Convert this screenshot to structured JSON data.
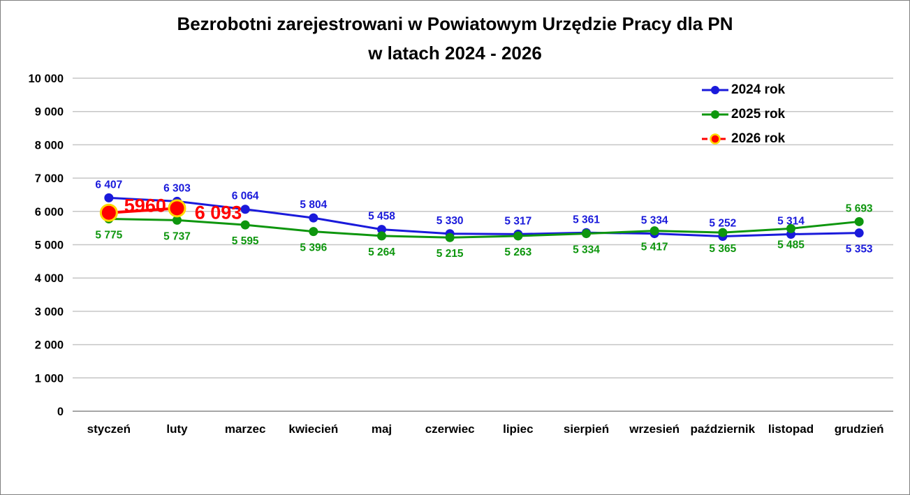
{
  "title": {
    "line1": "Bezrobotni zarejestrowani w Powiatowym Urzędzie Pracy dla PN",
    "line2": "w latach 2024 - 2026"
  },
  "colors": {
    "series_2024": "#1a1adb",
    "series_2025": "#0e960e",
    "series_2026": "#ff0000",
    "marker_ring_2026": "#ffd700",
    "gridline": "#c6c6c6",
    "axis_line": "#9a9a9a",
    "text": "#000000"
  },
  "chart_data": {
    "type": "line",
    "title": "Bezrobotni zarejestrowani w Powiatowym Urzędzie Pracy dla PN w latach 2024 - 2026",
    "categories": [
      "styczeń",
      "luty",
      "marzec",
      "kwiecień",
      "maj",
      "czerwiec",
      "lipiec",
      "sierpień",
      "wrzesień",
      "październik",
      "listopad",
      "grudzień"
    ],
    "y_axis": {
      "min": 0,
      "max": 10000,
      "step": 1000,
      "tick_labels": [
        "10 000",
        "9 000",
        "8 000",
        "7 000",
        "6 000",
        "5 000",
        "4 000",
        "3 000",
        "2 000",
        "1 000",
        "0"
      ]
    },
    "grid": true,
    "legend_position": "top-right",
    "series": [
      {
        "name": "2024 rok",
        "color": "#1a1adb",
        "line_style": "solid",
        "marker": "circle",
        "values": [
          6407,
          6303,
          6064,
          5804,
          5458,
          5330,
          5317,
          5361,
          5334,
          5252,
          5314,
          5353
        ],
        "labels": [
          "6 407",
          "6 303",
          "6 064",
          "5 804",
          "5 458",
          "5 330",
          "5 317",
          "5 361",
          "5 334",
          "5 252",
          "5 314",
          "5 353"
        ],
        "label_positions": [
          "above",
          "above",
          "above",
          "above",
          "above",
          "above",
          "above",
          "above",
          "above",
          "above",
          "above",
          "below"
        ]
      },
      {
        "name": "2025 rok",
        "color": "#0e960e",
        "line_style": "solid",
        "marker": "circle",
        "values": [
          5775,
          5737,
          5595,
          5396,
          5264,
          5215,
          5263,
          5334,
          5417,
          5365,
          5485,
          5693
        ],
        "labels": [
          "5 775",
          "5 737",
          "5 595",
          "5 396",
          "5 264",
          "5 215",
          "5 263",
          "5 334",
          "5 417",
          "5 365",
          "5 485",
          "5 693"
        ],
        "label_positions": [
          "below",
          "below",
          "below",
          "below",
          "below",
          "below",
          "below",
          "below",
          "below",
          "below",
          "below",
          "above"
        ]
      },
      {
        "name": "2026 rok",
        "color": "#ff0000",
        "line_style": "solid",
        "legend_line_style": "dashed",
        "marker": "ringed-circle",
        "marker_ring_color": "#ffd700",
        "category_indices": [
          0,
          1
        ],
        "values": [
          5960,
          6093
        ],
        "labels": [
          "5960",
          "6 093"
        ],
        "label_font_size": 27,
        "label_offsets": [
          {
            "dx": 52,
            "dy": -1
          },
          {
            "dx": 59,
            "dy": 15
          }
        ]
      }
    ]
  }
}
